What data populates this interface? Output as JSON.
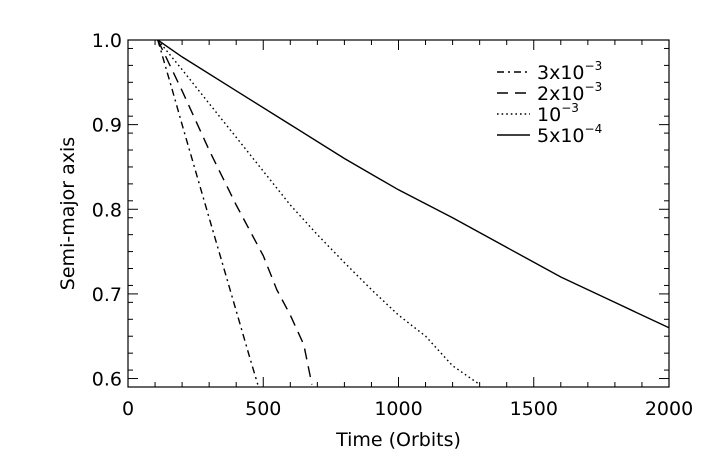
{
  "chart_data": {
    "type": "line",
    "title": "",
    "xlabel": "Time (Orbits)",
    "ylabel": "Semi-major axis",
    "xlim": [
      0,
      2000
    ],
    "ylim": [
      0.59,
      1.0
    ],
    "grid": false,
    "legend_position": "top-right",
    "xticks": [
      {
        "value": 0,
        "label": "0"
      },
      {
        "value": 500,
        "label": "500"
      },
      {
        "value": 1000,
        "label": "1000"
      },
      {
        "value": 1500,
        "label": "1500"
      },
      {
        "value": 2000,
        "label": "2000"
      }
    ],
    "yticks": [
      {
        "value": 0.6,
        "label": "0.6"
      },
      {
        "value": 0.7,
        "label": "0.7"
      },
      {
        "value": 0.8,
        "label": "0.8"
      },
      {
        "value": 0.9,
        "label": "0.9"
      },
      {
        "value": 1.0,
        "label": "1.0"
      }
    ],
    "series": [
      {
        "name": "3x10^-3",
        "name_base": "3x10",
        "name_exp": "−3",
        "dash": "dashdot",
        "x": [
          110,
          160,
          200,
          250,
          300,
          350,
          400,
          450,
          480
        ],
        "y": [
          1.0,
          0.945,
          0.9,
          0.845,
          0.79,
          0.735,
          0.68,
          0.625,
          0.593
        ]
      },
      {
        "name": "2x10^-3",
        "name_base": "2x10",
        "name_exp": "−3",
        "dash": "dashed",
        "x": [
          110,
          200,
          300,
          400,
          500,
          550,
          600,
          650,
          680
        ],
        "y": [
          1.0,
          0.94,
          0.87,
          0.805,
          0.745,
          0.705,
          0.675,
          0.64,
          0.593
        ]
      },
      {
        "name": "10^-3",
        "name_base": "10",
        "name_exp": "−3",
        "dash": "dotted",
        "x": [
          110,
          200,
          300,
          400,
          500,
          600,
          700,
          800,
          900,
          1000,
          1100,
          1200,
          1300
        ],
        "y": [
          1.0,
          0.965,
          0.925,
          0.885,
          0.845,
          0.805,
          0.77,
          0.737,
          0.705,
          0.675,
          0.65,
          0.615,
          0.593
        ]
      },
      {
        "name": "5x10^-4",
        "name_base": "5x10",
        "name_exp": "−4",
        "dash": "solid",
        "x": [
          110,
          200,
          400,
          600,
          800,
          1000,
          1200,
          1400,
          1600,
          1800,
          2000
        ],
        "y": [
          1.0,
          0.98,
          0.94,
          0.9,
          0.86,
          0.823,
          0.79,
          0.755,
          0.72,
          0.69,
          0.66
        ]
      }
    ]
  }
}
